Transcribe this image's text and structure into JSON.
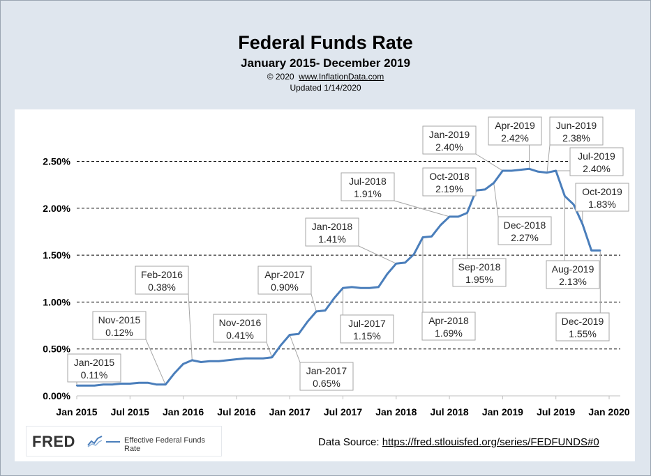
{
  "header": {
    "title": "Federal Funds Rate",
    "subtitle": "January 2015- December 2019",
    "copyright_prefix": "© 2020",
    "copyright_site": "www.InflationData.com",
    "updated": "Updated  1/14/2020"
  },
  "footer": {
    "fred_logo": "FRED",
    "fred_legend": "Effective Federal Funds Rate",
    "source_label": "Data Source: ",
    "source_url": "https://fred.stlouisfed.org/series/FEDFUNDS#0"
  },
  "colors": {
    "line": "#4a7ebb",
    "background": "#dfe6ee",
    "plot": "#ffffff"
  },
  "chart_data": {
    "type": "line",
    "title": "Federal Funds Rate",
    "subtitle": "January 2015- December 2019",
    "x_ticks": [
      "Jan 2015",
      "Jul 2015",
      "Jan 2016",
      "Jul 2016",
      "Jan 2017",
      "Jul 2017",
      "Jan 2018",
      "Jul 2018",
      "Jan 2019",
      "Jul 2019",
      "Jan 2020"
    ],
    "y_ticks": [
      "0.00%",
      "0.50%",
      "1.00%",
      "1.50%",
      "2.00%",
      "2.50%"
    ],
    "ylim": [
      0,
      2.75
    ],
    "grid": "horizontal dashed",
    "series": [
      {
        "name": "Effective Federal Funds Rate",
        "x": [
          "2015-01",
          "2015-02",
          "2015-03",
          "2015-04",
          "2015-05",
          "2015-06",
          "2015-07",
          "2015-08",
          "2015-09",
          "2015-10",
          "2015-11",
          "2015-12",
          "2016-01",
          "2016-02",
          "2016-03",
          "2016-04",
          "2016-05",
          "2016-06",
          "2016-07",
          "2016-08",
          "2016-09",
          "2016-10",
          "2016-11",
          "2016-12",
          "2017-01",
          "2017-02",
          "2017-03",
          "2017-04",
          "2017-05",
          "2017-06",
          "2017-07",
          "2017-08",
          "2017-09",
          "2017-10",
          "2017-11",
          "2017-12",
          "2018-01",
          "2018-02",
          "2018-03",
          "2018-04",
          "2018-05",
          "2018-06",
          "2018-07",
          "2018-08",
          "2018-09",
          "2018-10",
          "2018-11",
          "2018-12",
          "2019-01",
          "2019-02",
          "2019-03",
          "2019-04",
          "2019-05",
          "2019-06",
          "2019-07",
          "2019-08",
          "2019-09",
          "2019-10",
          "2019-11",
          "2019-12"
        ],
        "values": [
          0.11,
          0.11,
          0.11,
          0.12,
          0.12,
          0.13,
          0.13,
          0.14,
          0.14,
          0.12,
          0.12,
          0.24,
          0.34,
          0.38,
          0.36,
          0.37,
          0.37,
          0.38,
          0.39,
          0.4,
          0.4,
          0.4,
          0.41,
          0.54,
          0.65,
          0.66,
          0.79,
          0.9,
          0.91,
          1.04,
          1.15,
          1.16,
          1.15,
          1.15,
          1.16,
          1.3,
          1.41,
          1.42,
          1.51,
          1.69,
          1.7,
          1.82,
          1.91,
          1.91,
          1.95,
          2.19,
          2.2,
          2.27,
          2.4,
          2.4,
          2.41,
          2.42,
          2.39,
          2.38,
          2.4,
          2.13,
          2.04,
          1.83,
          1.55,
          1.55
        ]
      }
    ],
    "annotations": [
      {
        "month": "2015-01",
        "label": "Jan-2015",
        "value": "0.11%"
      },
      {
        "month": "2015-11",
        "label": "Nov-2015",
        "value": "0.12%"
      },
      {
        "month": "2016-02",
        "label": "Feb-2016",
        "value": "0.38%"
      },
      {
        "month": "2016-11",
        "label": "Nov-2016",
        "value": "0.41%"
      },
      {
        "month": "2017-01",
        "label": "Jan-2017",
        "value": "0.65%"
      },
      {
        "month": "2017-04",
        "label": "Apr-2017",
        "value": "0.90%"
      },
      {
        "month": "2017-07",
        "label": "Jul-2017",
        "value": "1.15%"
      },
      {
        "month": "2018-01",
        "label": "Jan-2018",
        "value": "1.41%"
      },
      {
        "month": "2018-04",
        "label": "Apr-2018",
        "value": "1.69%"
      },
      {
        "month": "2018-07",
        "label": "Jul-2018",
        "value": "1.91%"
      },
      {
        "month": "2018-09",
        "label": "Sep-2018",
        "value": "1.95%"
      },
      {
        "month": "2018-10",
        "label": "Oct-2018",
        "value": "2.19%"
      },
      {
        "month": "2018-12",
        "label": "Dec-2018",
        "value": "2.27%"
      },
      {
        "month": "2019-01",
        "label": "Jan-2019",
        "value": "2.40%"
      },
      {
        "month": "2019-04",
        "label": "Apr-2019",
        "value": "2.42%"
      },
      {
        "month": "2019-06",
        "label": "Jun-2019",
        "value": "2.38%"
      },
      {
        "month": "2019-07",
        "label": "Jul-2019",
        "value": "2.40%"
      },
      {
        "month": "2019-08",
        "label": "Aug-2019",
        "value": "2.13%"
      },
      {
        "month": "2019-10",
        "label": "Oct-2019",
        "value": "1.83%"
      },
      {
        "month": "2019-12",
        "label": "Dec-2019",
        "value": "1.55%"
      }
    ]
  }
}
